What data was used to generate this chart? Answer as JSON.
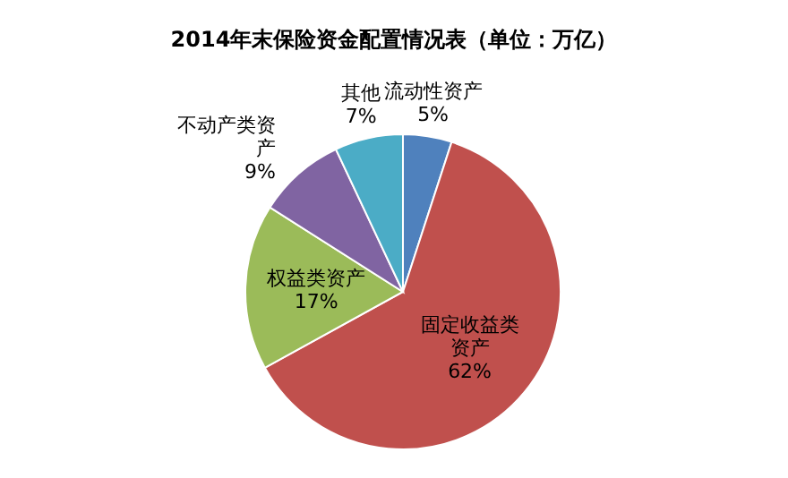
{
  "chart_data": {
    "type": "pie",
    "title": "2014年末保险资金配置情况表（单位：万亿）",
    "categories": [
      "流动性资产",
      "固定收益类资产",
      "权益类资产",
      "不动产类资产",
      "其他"
    ],
    "values": [
      5,
      62,
      17,
      9,
      7
    ],
    "value_labels": [
      "5%",
      "62%",
      "17%",
      "9%",
      "7%"
    ],
    "colors": [
      "#4f81bd",
      "#c0504d",
      "#9bbb59",
      "#8064a2",
      "#4bacc6"
    ]
  }
}
